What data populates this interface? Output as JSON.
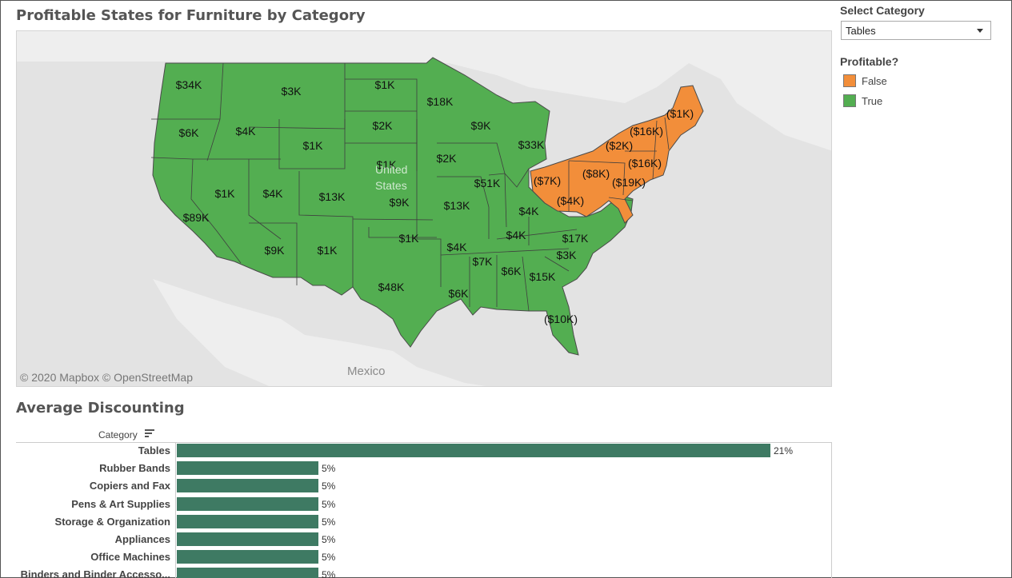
{
  "map": {
    "title": "Profitable States for Furniture by Category",
    "credit": "© 2020 Mapbox  © OpenStreetMap",
    "places": [
      {
        "name": "United States"
      },
      {
        "name": "Mexico"
      }
    ],
    "labels": [
      "$34K",
      "$3K",
      "$1K",
      "$18K",
      "$6K",
      "$4K",
      "$2K",
      "$9K",
      "$33K",
      "$1K",
      "$1K",
      "$2K",
      "$1K",
      "$4K",
      "$13K",
      "$9K",
      "$51K",
      "$89K",
      "$13K",
      "$4K",
      "$1K",
      "$9K",
      "$1K",
      "$4K",
      "$4K",
      "$17K",
      "$3K",
      "$7K",
      "$6K",
      "$15K",
      "$6K",
      "$48K",
      "($10K)",
      "($1K)",
      "($16K)",
      "($2K)",
      "($16K)",
      "($8K)",
      "($19K)",
      "($7K)",
      "($4K)"
    ],
    "colors": {
      "true": "#53ae51",
      "false": "#f28e3a",
      "background": "#e3e3e3",
      "land": "#f3f3f3"
    }
  },
  "filter": {
    "title": "Select Category",
    "selected": "Tables"
  },
  "legend": {
    "title": "Profitable?",
    "items": [
      {
        "label": "False",
        "color": "#f28e3a"
      },
      {
        "label": "True",
        "color": "#53ae51"
      }
    ]
  },
  "bar_section": {
    "title": "Average Discounting",
    "header": "Category"
  },
  "chart_data": {
    "type": "bar",
    "orientation": "horizontal",
    "title": "Average Discounting",
    "xlabel": "",
    "ylabel": "Category",
    "categories": [
      "Tables",
      "Rubber Bands",
      "Copiers and Fax",
      "Pens & Art Supplies",
      "Storage & Organization",
      "Appliances",
      "Office Machines",
      "Binders and Binder Accesso..."
    ],
    "values": [
      21,
      5,
      5,
      5,
      5,
      5,
      5,
      5
    ],
    "value_labels": [
      "21%",
      "5%",
      "5%",
      "5%",
      "5%",
      "5%",
      "5%",
      "5%"
    ],
    "unit": "%",
    "bar_color": "#3e7a63"
  }
}
